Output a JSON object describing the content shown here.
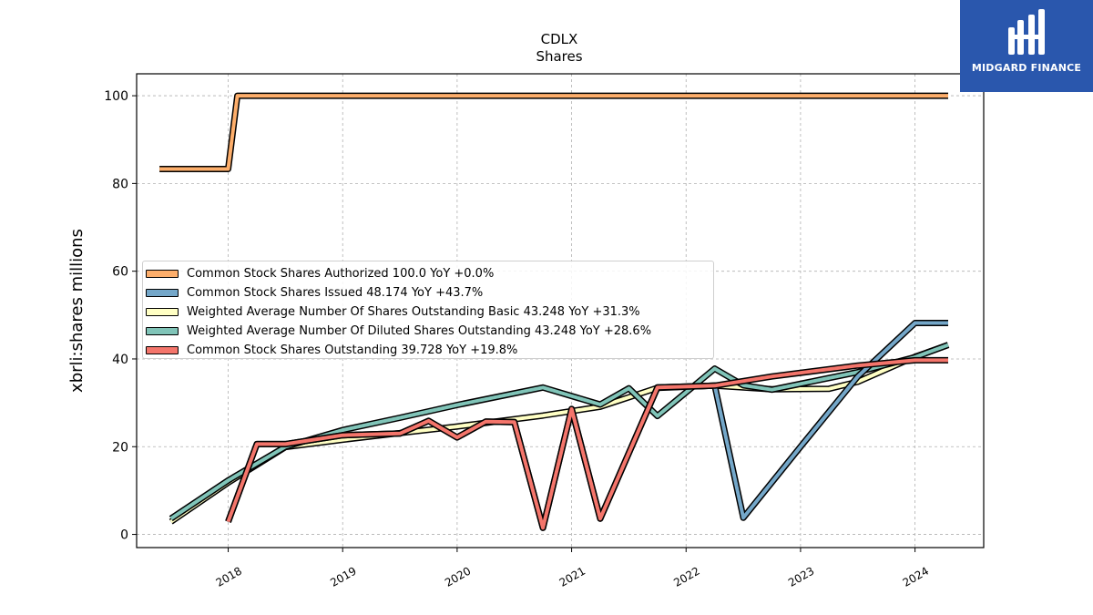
{
  "chart_data": {
    "type": "line",
    "title": "CDLX",
    "subtitle": "Shares",
    "ylabel": "xbrli:shares millions",
    "xlabel": "",
    "xlim": [
      2017.2,
      2024.6
    ],
    "ylim": [
      -3,
      105
    ],
    "yticks": [
      0,
      20,
      40,
      60,
      80,
      100
    ],
    "xticks": [
      "2018",
      "2019",
      "2020",
      "2021",
      "2022",
      "2023",
      "2024"
    ],
    "grid": true,
    "legend_position": "center-left",
    "series": [
      {
        "name": "Common Stock Shares Authorized  100.0 YoY +0.0%",
        "color": "#fdae6b",
        "points": [
          [
            2017.4,
            83.3
          ],
          [
            2018.0,
            83.3
          ],
          [
            2018.08,
            100.0
          ],
          [
            2024.29,
            100.0
          ]
        ]
      },
      {
        "name": "Common Stock Shares Issued  48.174 YoY +43.7%",
        "color": "#74a7c9",
        "points": [
          [
            2018.0,
            2.9
          ],
          [
            2018.25,
            20.6
          ],
          [
            2018.5,
            20.6
          ],
          [
            2019.0,
            22.6
          ],
          [
            2019.5,
            23.0
          ],
          [
            2019.75,
            25.9
          ],
          [
            2020.0,
            22.1
          ],
          [
            2020.25,
            25.7
          ],
          [
            2020.5,
            25.6
          ],
          [
            2020.75,
            1.5
          ],
          [
            2021.0,
            28.6
          ],
          [
            2021.25,
            3.6
          ],
          [
            2021.75,
            33.5
          ],
          [
            2022.25,
            33.9
          ],
          [
            2022.5,
            3.8
          ],
          [
            2023.0,
            20.0
          ],
          [
            2023.5,
            36.0
          ],
          [
            2024.0,
            48.2
          ],
          [
            2024.29,
            48.2
          ]
        ]
      },
      {
        "name": "Weighted Average Number Of Shares Outstanding Basic  43.248 YoY +31.3%",
        "color": "#ffffc4",
        "points": [
          [
            2017.5,
            2.9
          ],
          [
            2018.0,
            11.8
          ],
          [
            2018.5,
            19.9
          ],
          [
            2019.0,
            21.6
          ],
          [
            2019.5,
            23.1
          ],
          [
            2020.0,
            24.6
          ],
          [
            2020.75,
            27.1
          ],
          [
            2021.25,
            29.1
          ],
          [
            2021.75,
            33.4
          ],
          [
            2022.25,
            33.9
          ],
          [
            2022.75,
            33.1
          ],
          [
            2023.25,
            33.2
          ],
          [
            2023.5,
            34.8
          ],
          [
            2024.0,
            40.5
          ],
          [
            2024.29,
            43.2
          ]
        ]
      },
      {
        "name": "Weighted Average Number Of Diluted Shares Outstanding  43.248 YoY +28.6%",
        "color": "#80c4b8",
        "points": [
          [
            2017.5,
            3.6
          ],
          [
            2018.0,
            12.3
          ],
          [
            2018.5,
            20.0
          ],
          [
            2019.0,
            23.8
          ],
          [
            2019.5,
            26.6
          ],
          [
            2020.0,
            29.5
          ],
          [
            2020.75,
            33.5
          ],
          [
            2021.25,
            29.6
          ],
          [
            2021.5,
            33.3
          ],
          [
            2021.75,
            27.0
          ],
          [
            2022.25,
            37.8
          ],
          [
            2022.5,
            34.0
          ],
          [
            2022.75,
            33.0
          ],
          [
            2023.5,
            37.0
          ],
          [
            2024.0,
            40.4
          ],
          [
            2024.29,
            43.2
          ]
        ]
      },
      {
        "name": "Common Stock Shares Outstanding  39.728 YoY +19.8%",
        "color": "#f4756b",
        "points": [
          [
            2018.0,
            2.9
          ],
          [
            2018.25,
            20.6
          ],
          [
            2018.5,
            20.6
          ],
          [
            2019.0,
            22.6
          ],
          [
            2019.5,
            23.0
          ],
          [
            2019.75,
            25.9
          ],
          [
            2020.0,
            22.1
          ],
          [
            2020.25,
            25.7
          ],
          [
            2020.5,
            25.6
          ],
          [
            2020.75,
            1.5
          ],
          [
            2021.0,
            28.6
          ],
          [
            2021.25,
            3.6
          ],
          [
            2021.75,
            33.5
          ],
          [
            2022.25,
            33.9
          ],
          [
            2022.75,
            36.0
          ],
          [
            2023.5,
            38.5
          ],
          [
            2024.0,
            39.7
          ],
          [
            2024.29,
            39.7
          ]
        ]
      }
    ]
  },
  "logo": {
    "text": "MIDGARD FINANCE",
    "icon": "midgard-logo-icon"
  }
}
